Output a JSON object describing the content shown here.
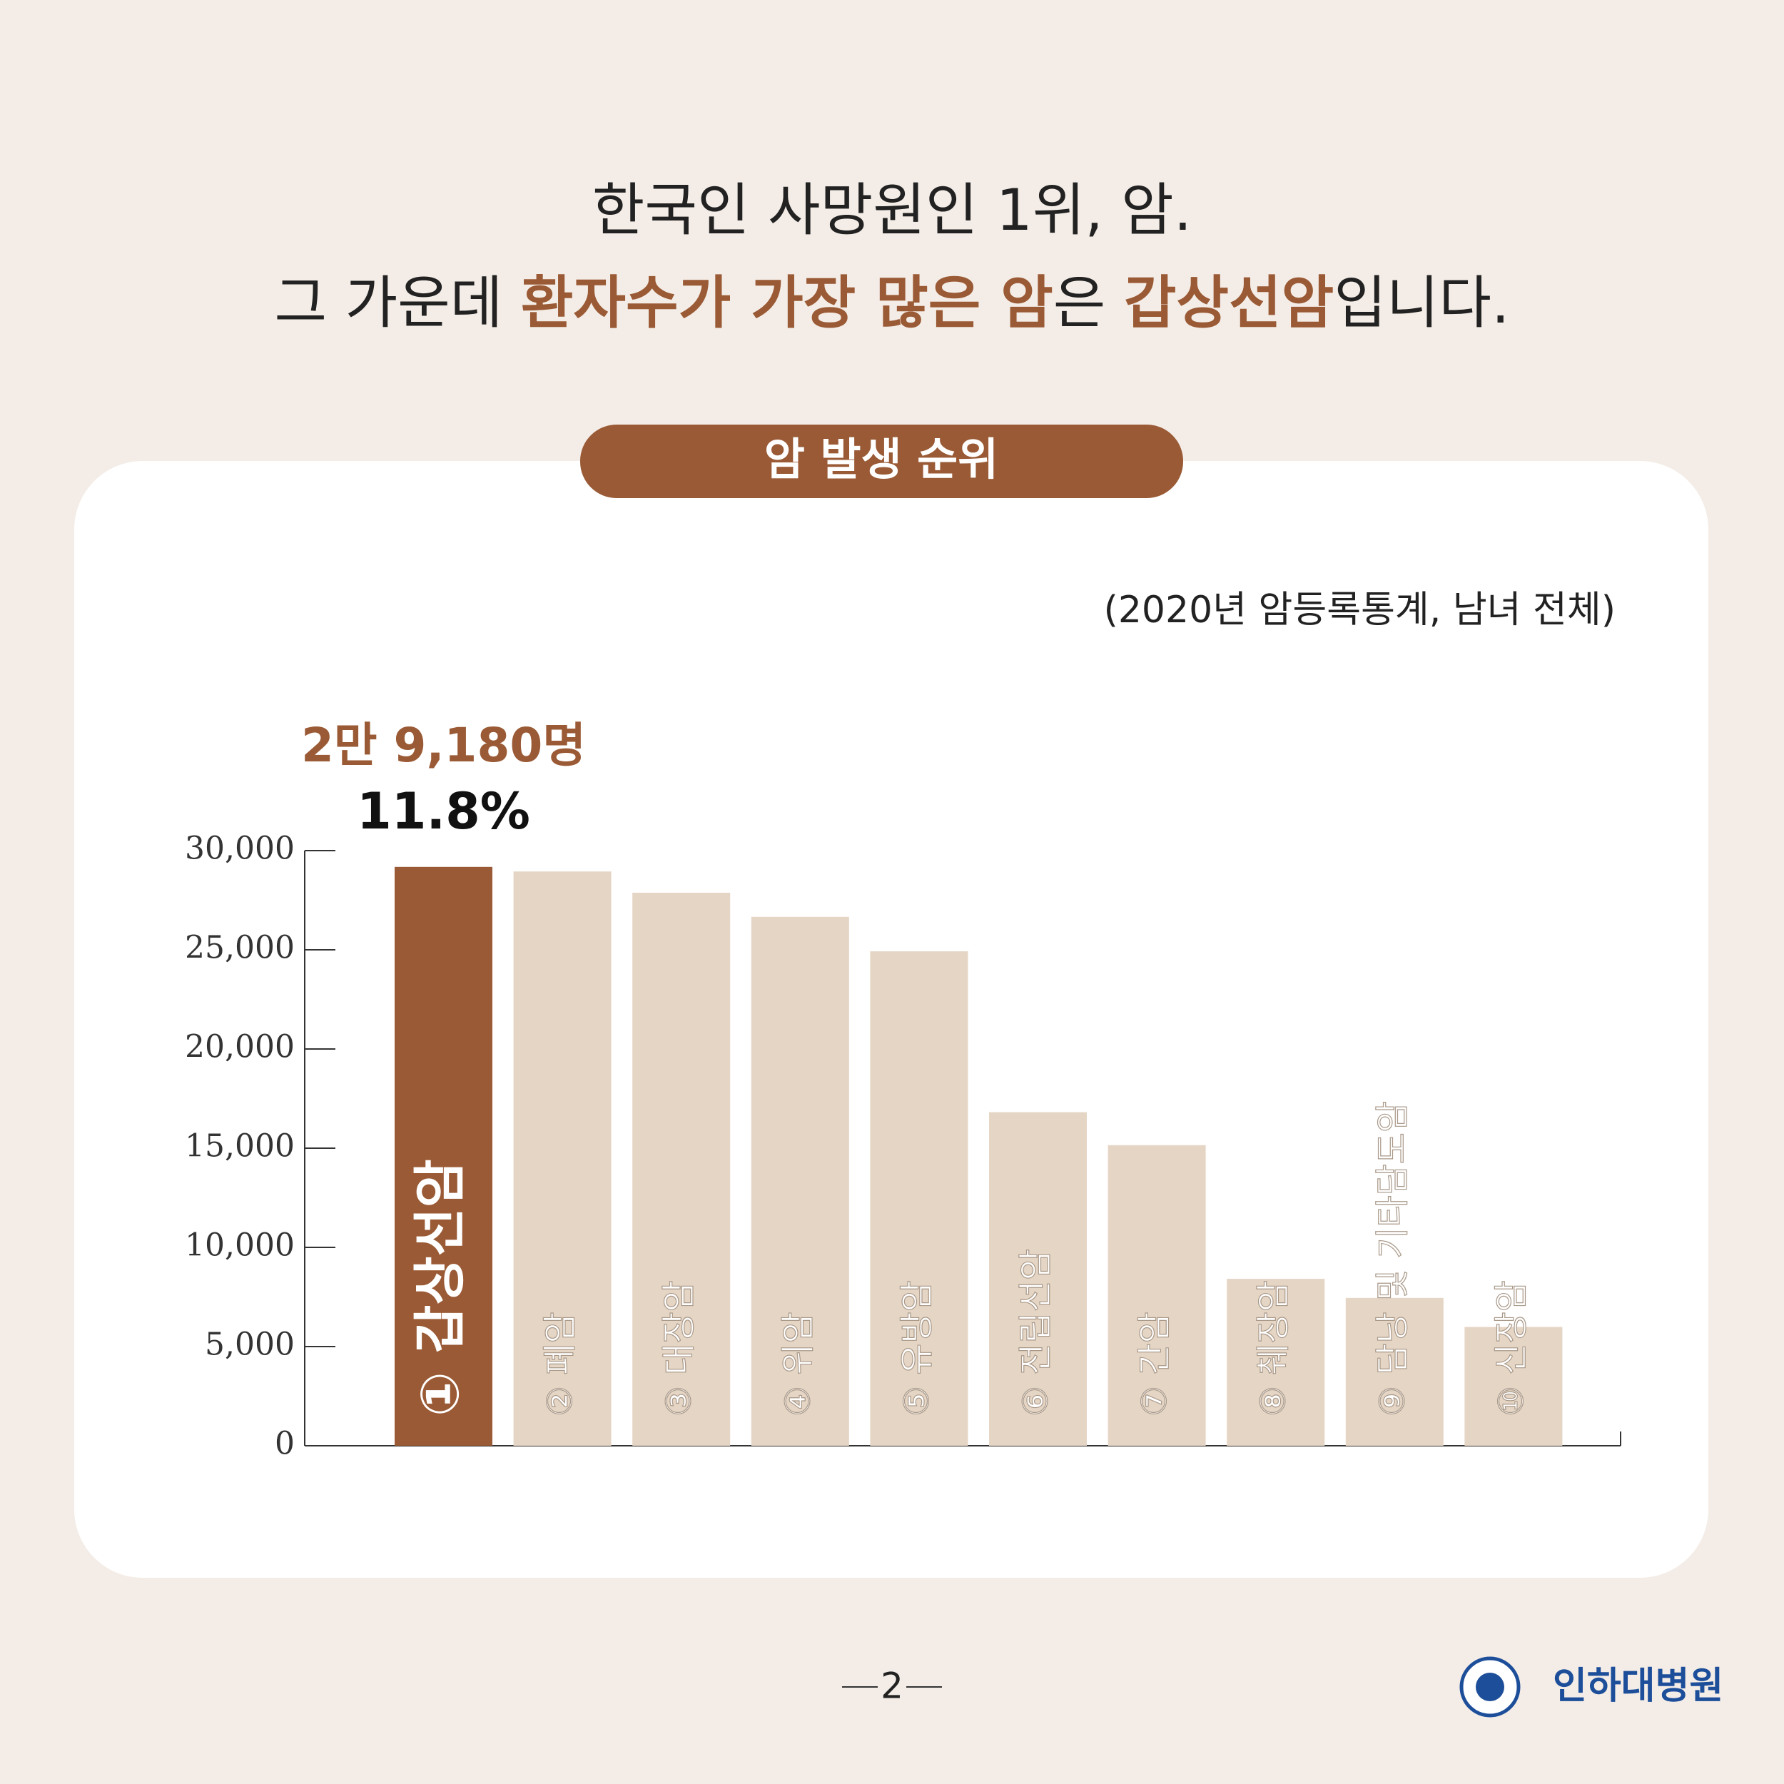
{
  "header": {
    "title_line1": "한국인 사망원인 1위, 암.",
    "title_line2": [
      {
        "text": "그 가운데 ",
        "color": "#222222"
      },
      {
        "text": "환자수가 가장 많은 암",
        "color": "#9a5a35"
      },
      {
        "text": "은 ",
        "color": "#222222"
      },
      {
        "text": "갑상선암",
        "color": "#9a5a35"
      },
      {
        "text": "입니다.",
        "color": "#222222"
      }
    ]
  },
  "chart_data": {
    "type": "bar",
    "title": "암 발생 순위",
    "subtitle": "(2020년 암등록통계, 남녀 전체)",
    "categories": [
      "① 갑상선암",
      "② 폐암",
      "③ 대장암",
      "④ 위암",
      "⑤ 유방암",
      "⑥ 전립선암",
      "⑦ 간암",
      "⑧ 췌장암",
      "⑨ 담낭 및 기타담도암",
      "⑩ 신장암"
    ],
    "values": [
      29180,
      28949,
      27877,
      26662,
      24923,
      16815,
      15152,
      8414,
      7452,
      5989
    ],
    "value_labels": [
      "2만 9,180명",
      null,
      null,
      null,
      null,
      null,
      null,
      null,
      null,
      null
    ],
    "share_labels": [
      "11.8%",
      null,
      null,
      null,
      null,
      null,
      null,
      null,
      null,
      null
    ],
    "colors": [
      "#9a5a35",
      "#e5d5c5",
      "#e5d5c5",
      "#e5d5c5",
      "#e5d5c5",
      "#e5d5c5",
      "#e5d5c5",
      "#e5d5c5",
      "#e5d5c5",
      "#e5d5c5"
    ],
    "ylim": [
      0,
      30000
    ],
    "yticks": [
      0,
      {
        "value": 5000,
        "label": "5,000"
      },
      {
        "value": 10000,
        "label": "10,000"
      },
      {
        "value": 15000,
        "label": "15,000"
      },
      {
        "value": 20000,
        "label": "20,000"
      },
      {
        "value": 25000,
        "label": "25,000"
      },
      {
        "value": 30000,
        "label": "30,000"
      }
    ],
    "grid": false
  },
  "footer": {
    "page": "2",
    "logo": "인하대병원"
  }
}
